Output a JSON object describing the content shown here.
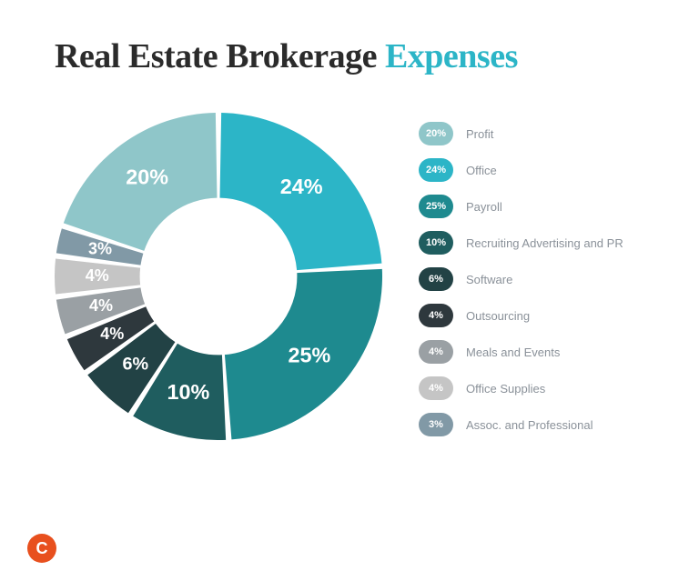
{
  "title": {
    "main": "Real Estate Brokerage ",
    "accent": "Expenses",
    "main_color": "#2b2b2b",
    "accent_color": "#2cb5c7",
    "fontsize": 38
  },
  "chart": {
    "type": "donut",
    "inner_radius_pct": 48,
    "outer_radius_pct": 100,
    "gap_deg": 2,
    "start_angle_deg": -90,
    "label_color": "#ffffff",
    "label_fontsize": 18,
    "background_color": "#ffffff",
    "slices": [
      {
        "value": 24,
        "label": "24%",
        "color": "#2cb5c7",
        "name": "Office"
      },
      {
        "value": 25,
        "label": "25%",
        "color": "#1e8a8f",
        "name": "Payroll"
      },
      {
        "value": 10,
        "label": "10%",
        "color": "#1f5d5f",
        "name": "Recruiting Advertising and PR"
      },
      {
        "value": 6,
        "label": "6%",
        "color": "#224245",
        "name": "Software"
      },
      {
        "value": 4,
        "label": "4%",
        "color": "#2e383d",
        "name": "Outsourcing"
      },
      {
        "value": 4,
        "label": "4%",
        "color": "#9aa0a4",
        "name": "Meals and Events"
      },
      {
        "value": 4,
        "label": "4%",
        "color": "#c5c5c5",
        "name": "Office Supplies"
      },
      {
        "value": 3,
        "label": "3%",
        "color": "#8199a6",
        "name": "Assoc. and Professional"
      },
      {
        "value": 20,
        "label": "20%",
        "color": "#8fc6c9",
        "name": "Profit"
      }
    ]
  },
  "legend": {
    "items": [
      {
        "pct": "20%",
        "label": "Profit",
        "color": "#8fc6c9"
      },
      {
        "pct": "24%",
        "label": "Office",
        "color": "#2cb5c7"
      },
      {
        "pct": "25%",
        "label": "Payroll",
        "color": "#1e8a8f"
      },
      {
        "pct": "10%",
        "label": "Recruiting Advertising and PR",
        "color": "#1f5d5f"
      },
      {
        "pct": "6%",
        "label": "Software",
        "color": "#224245"
      },
      {
        "pct": "4%",
        "label": "Outsourcing",
        "color": "#2e383d"
      },
      {
        "pct": "4%",
        "label": "Meals and Events",
        "color": "#9aa0a4"
      },
      {
        "pct": "4%",
        "label": "Office Supplies",
        "color": "#c5c5c5"
      },
      {
        "pct": "3%",
        "label": "Assoc. and Professional",
        "color": "#8199a6"
      }
    ],
    "badge_fontsize": 11,
    "label_fontsize": 13,
    "label_color": "#8a9199"
  },
  "logo": {
    "letter": "C",
    "bg_color": "#e8501e",
    "fg_color": "#ffffff"
  }
}
